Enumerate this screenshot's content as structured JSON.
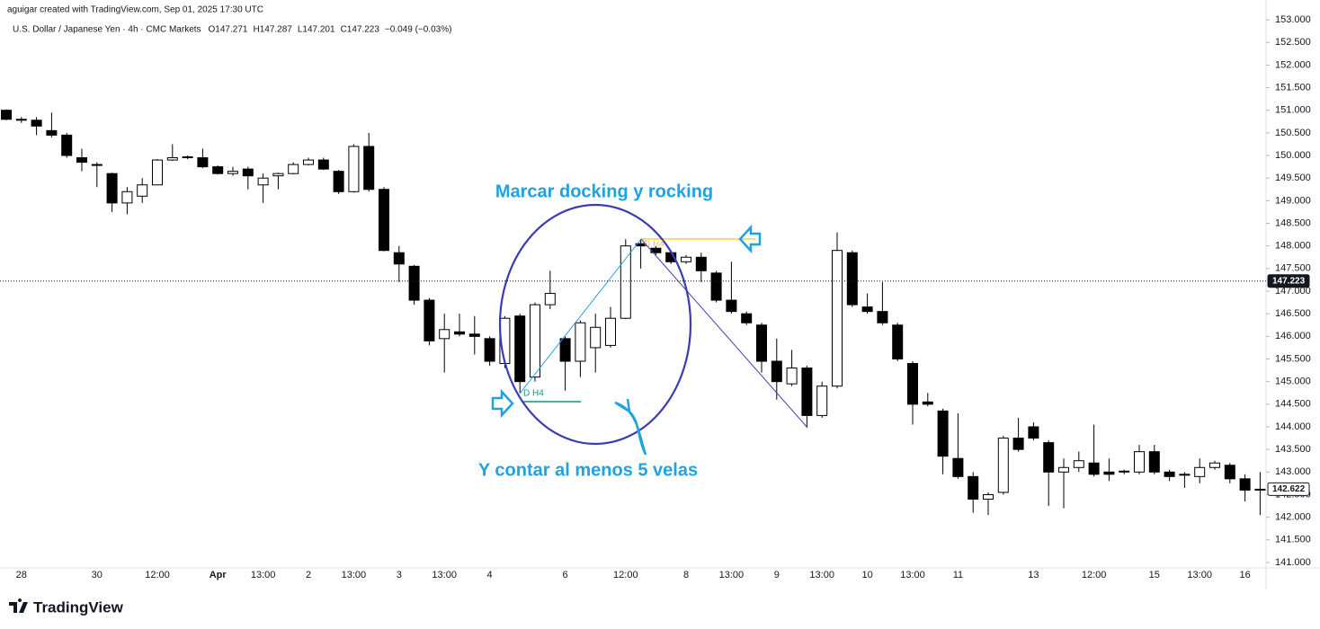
{
  "header": {
    "credit": "aguigar created with TradingView.com, Sep 01, 2025 17:30 UTC",
    "symbol": "U.S. Dollar / Japanese Yen · 4h · CMC Markets",
    "ohlc": [
      "O147.271",
      "H147.287",
      "L147.201",
      "C147.223",
      "−0.049 (−0.03%)"
    ]
  },
  "footer": {
    "logo": "TradingView"
  },
  "chart_data": {
    "type": "candlestick",
    "categories": [
      null,
      "28",
      null,
      null,
      null,
      null,
      "30",
      null,
      null,
      null,
      "12:00",
      null,
      null,
      null,
      "Apr",
      null,
      null,
      "13:00",
      null,
      null,
      "2",
      null,
      null,
      "13:00",
      null,
      null,
      "3",
      null,
      null,
      "13:00",
      null,
      null,
      "4",
      null,
      null,
      null,
      null,
      "6",
      null,
      null,
      null,
      "12:00",
      null,
      null,
      null,
      "8",
      null,
      null,
      "13:00",
      null,
      null,
      "9",
      null,
      null,
      "13:00",
      null,
      null,
      "10",
      null,
      null,
      "13:00",
      null,
      null,
      "11",
      null,
      null,
      null,
      null,
      "13",
      null,
      null,
      null,
      "12:00",
      null,
      null,
      null,
      "15",
      null,
      null,
      "13:00",
      null,
      null,
      "16",
      null
    ],
    "open": [
      151.0,
      150.8,
      150.78,
      150.55,
      150.45,
      149.95,
      149.8,
      149.6,
      148.95,
      149.1,
      149.35,
      149.9,
      149.95,
      149.95,
      149.75,
      149.6,
      149.7,
      149.35,
      149.55,
      149.6,
      149.8,
      149.9,
      149.65,
      149.2,
      150.2,
      149.25,
      147.85,
      147.55,
      146.8,
      145.95,
      146.1,
      146.05,
      145.95,
      145.4,
      146.45,
      145.1,
      146.7,
      145.95,
      145.45,
      145.75,
      145.8,
      146.4,
      148.05,
      147.95,
      147.85,
      147.65,
      147.75,
      147.4,
      146.8,
      146.5,
      146.25,
      145.45,
      144.95,
      145.3,
      144.25,
      144.9,
      147.85,
      146.65,
      146.55,
      146.25,
      145.4,
      144.55,
      144.35,
      143.3,
      142.9,
      142.4,
      142.55,
      143.75,
      144.0,
      143.65,
      143.0,
      143.1,
      143.2,
      143.0,
      143.0,
      143.0,
      143.45,
      143.0,
      142.95,
      142.9,
      143.1,
      143.15,
      142.85,
      142.6
    ],
    "high": [
      151.02,
      150.85,
      150.85,
      150.95,
      150.5,
      150.15,
      149.85,
      149.62,
      149.3,
      149.5,
      149.92,
      150.25,
      150.0,
      150.15,
      149.78,
      149.75,
      149.75,
      149.6,
      149.62,
      149.85,
      149.95,
      149.95,
      149.68,
      150.25,
      150.5,
      149.3,
      148.0,
      147.58,
      146.85,
      146.5,
      146.5,
      146.45,
      146.0,
      146.45,
      146.5,
      146.75,
      147.45,
      146.0,
      146.35,
      146.5,
      146.65,
      148.15,
      148.15,
      148.0,
      147.9,
      147.8,
      147.85,
      147.45,
      147.65,
      146.55,
      146.3,
      145.95,
      145.7,
      145.35,
      145.0,
      148.3,
      147.9,
      146.95,
      147.2,
      146.3,
      145.45,
      144.75,
      144.4,
      144.3,
      143.0,
      142.55,
      143.8,
      144.2,
      144.1,
      143.7,
      143.3,
      143.45,
      144.05,
      143.3,
      143.05,
      143.6,
      143.6,
      143.05,
      143.0,
      143.3,
      143.25,
      143.2,
      142.95,
      143.0
    ],
    "low": [
      150.78,
      150.72,
      150.45,
      150.4,
      149.95,
      149.65,
      149.3,
      148.75,
      148.7,
      148.95,
      149.35,
      149.88,
      149.92,
      149.72,
      149.58,
      149.55,
      149.25,
      148.95,
      149.25,
      149.58,
      149.78,
      149.68,
      149.15,
      149.18,
      149.2,
      147.88,
      147.2,
      146.7,
      145.8,
      145.2,
      146.0,
      145.6,
      145.35,
      145.3,
      144.75,
      145.0,
      146.6,
      144.8,
      145.1,
      145.2,
      145.75,
      146.38,
      147.5,
      147.8,
      147.6,
      147.6,
      147.2,
      146.75,
      146.5,
      146.25,
      145.2,
      144.6,
      144.9,
      144.0,
      144.2,
      144.85,
      146.65,
      146.5,
      146.25,
      145.45,
      144.05,
      144.45,
      142.95,
      142.85,
      142.1,
      142.05,
      142.5,
      143.45,
      143.7,
      142.25,
      142.2,
      143.0,
      142.9,
      142.8,
      142.95,
      142.95,
      142.95,
      142.8,
      142.65,
      142.75,
      143.05,
      142.75,
      142.35,
      142.05
    ],
    "close": [
      150.8,
      150.78,
      150.65,
      150.45,
      150.0,
      149.85,
      149.78,
      148.95,
      149.2,
      149.35,
      149.9,
      149.95,
      149.97,
      149.75,
      149.6,
      149.65,
      149.55,
      149.5,
      149.6,
      149.8,
      149.9,
      149.7,
      149.2,
      150.2,
      149.25,
      147.9,
      147.6,
      146.8,
      145.9,
      146.15,
      146.05,
      146.0,
      145.45,
      146.4,
      145.0,
      146.7,
      146.95,
      145.45,
      146.3,
      146.2,
      146.4,
      148.0,
      148.0,
      147.85,
      147.65,
      147.75,
      147.45,
      146.8,
      146.55,
      146.3,
      145.45,
      145.0,
      145.3,
      144.25,
      144.9,
      147.9,
      146.7,
      146.55,
      146.3,
      145.5,
      144.5,
      144.5,
      143.35,
      142.9,
      142.4,
      142.5,
      143.75,
      143.5,
      143.75,
      143.0,
      143.1,
      143.25,
      142.95,
      142.95,
      143.02,
      143.45,
      143.0,
      142.9,
      142.93,
      143.1,
      143.2,
      142.85,
      142.6,
      142.62
    ],
    "up_color": "#ffffff",
    "down_color": "#000000",
    "wick_color": "#000000",
    "ylim": [
      140.88,
      153.16
    ],
    "yticks": [
      {
        "value": 141,
        "label": "141.000"
      },
      {
        "value": 141.5,
        "label": "141.500"
      },
      {
        "value": 142,
        "label": "142.000"
      },
      {
        "value": 142.5,
        "label": "142.500"
      },
      {
        "value": 143,
        "label": "143.000"
      },
      {
        "value": 143.5,
        "label": "143.500"
      },
      {
        "value": 144,
        "label": "144.000"
      },
      {
        "value": 144.5,
        "label": "144.500"
      },
      {
        "value": 145,
        "label": "145.000"
      },
      {
        "value": 145.5,
        "label": "145.500"
      },
      {
        "value": 146,
        "label": "146.000"
      },
      {
        "value": 146.5,
        "label": "146.500"
      },
      {
        "value": 147,
        "label": "147.000"
      },
      {
        "value": 147.5,
        "label": "147.500"
      },
      {
        "value": 148,
        "label": "148.000"
      },
      {
        "value": 148.5,
        "label": "148.500"
      },
      {
        "value": 149,
        "label": "149.000"
      },
      {
        "value": 149.5,
        "label": "149.500"
      },
      {
        "value": 150,
        "label": "150.000"
      },
      {
        "value": 150.5,
        "label": "150.500"
      },
      {
        "value": 151,
        "label": "151.000"
      },
      {
        "value": 151.5,
        "label": "151.500"
      },
      {
        "value": 152,
        "label": "152.000"
      },
      {
        "value": 152.5,
        "label": "152.500"
      },
      {
        "value": 153,
        "label": "153.000"
      }
    ],
    "price_lines": [
      {
        "value": 147.223,
        "label": "147.223",
        "line": true
      },
      {
        "value": 142.622,
        "label": "142.622",
        "line": false
      }
    ],
    "annotations": [
      "Marcar docking y rocking",
      "Y contar al menos 5 velas",
      "D H4",
      "D H4"
    ]
  }
}
